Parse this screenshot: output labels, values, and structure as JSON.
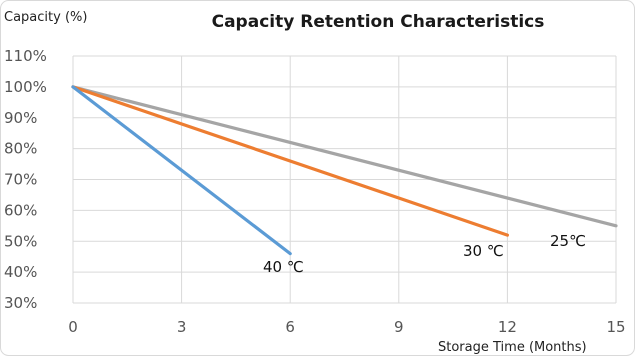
{
  "chart_data": {
    "type": "line",
    "title": "Capacity Retention Characteristics",
    "ylabel": "Capacity (%)",
    "xlabel": "Storage Time (Months)",
    "xlim": [
      0,
      15
    ],
    "ylim": [
      30,
      110
    ],
    "x_ticks": [
      "0",
      "3",
      "6",
      "9",
      "12",
      "15"
    ],
    "y_ticks": [
      "30%",
      "40%",
      "50%",
      "60%",
      "70%",
      "80%",
      "90%",
      "100%",
      "110%"
    ],
    "grid": true,
    "legend": "none",
    "series": [
      {
        "name": "40 ℃",
        "color": "#5b9bd5",
        "points": [
          [
            0,
            100
          ],
          [
            6,
            46
          ]
        ]
      },
      {
        "name": "30 ℃",
        "color": "#ed7d31",
        "points": [
          [
            0,
            100
          ],
          [
            12,
            52
          ]
        ]
      },
      {
        "name": "25℃",
        "color": "#a5a5a5",
        "points": [
          [
            0,
            100
          ],
          [
            15,
            55
          ]
        ]
      }
    ]
  }
}
